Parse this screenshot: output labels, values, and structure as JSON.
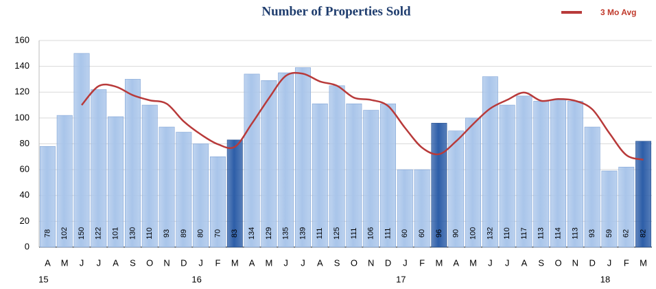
{
  "chart_data": {
    "type": "bar",
    "title": "Number of Properties Sold",
    "categories": [
      "A",
      "M",
      "J",
      "J",
      "A",
      "S",
      "O",
      "N",
      "D",
      "J",
      "F",
      "M",
      "A",
      "M",
      "J",
      "J",
      "A",
      "S",
      "O",
      "N",
      "D",
      "J",
      "F",
      "M",
      "A",
      "M",
      "J",
      "J",
      "A",
      "S",
      "O",
      "N",
      "D",
      "J",
      "F",
      "M"
    ],
    "years": [
      "15",
      null,
      null,
      null,
      null,
      null,
      null,
      null,
      null,
      "16",
      null,
      null,
      null,
      null,
      null,
      null,
      null,
      null,
      null,
      null,
      null,
      "17",
      null,
      null,
      null,
      null,
      null,
      null,
      null,
      null,
      null,
      null,
      null,
      "18",
      null,
      null
    ],
    "series": [
      {
        "type": "bar",
        "color": "#a9c5ea",
        "highlight_color": "#2d5ea8",
        "highlight": [
          11,
          23,
          35
        ],
        "values": [
          78,
          102,
          150,
          122,
          101,
          130,
          110,
          93,
          89,
          80,
          70,
          83,
          134,
          129,
          135,
          139,
          111,
          125,
          111,
          106,
          111,
          60,
          60,
          96,
          90,
          100,
          132,
          110,
          117,
          113,
          114,
          113,
          93,
          59,
          62,
          82
        ]
      },
      {
        "type": "line",
        "name": "3 Mo Avg",
        "color": "#b83a3a",
        "values": [
          null,
          null,
          110,
          124.7,
          124.3,
          117.7,
          113.7,
          111,
          97.3,
          87.3,
          79.7,
          77.7,
          95.7,
          115.3,
          132.7,
          134.3,
          128.3,
          125,
          115.7,
          114,
          109.3,
          92.3,
          77,
          72,
          82,
          95.3,
          107.3,
          114,
          119.7,
          113.3,
          114.7,
          113.3,
          106.7,
          88.3,
          71.3,
          67.7
        ]
      }
    ],
    "ylim": [
      0,
      160
    ],
    "yticks": [
      0,
      20,
      40,
      60,
      80,
      100,
      120,
      140,
      160
    ],
    "grid": true,
    "legend": "top-right"
  }
}
